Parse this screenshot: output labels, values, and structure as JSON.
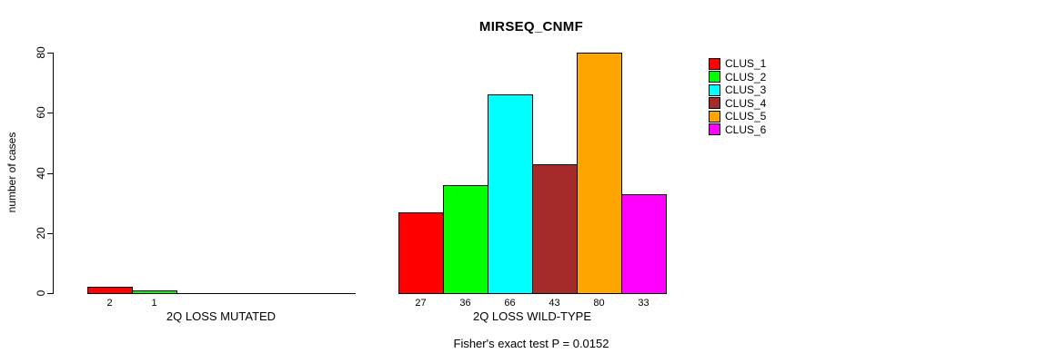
{
  "chart_data": {
    "type": "bar",
    "title": "MIRSEQ_CNMF",
    "ylabel": "number of cases",
    "xlabel": "",
    "ylim": [
      0,
      80
    ],
    "yticks": [
      0,
      20,
      40,
      60,
      80
    ],
    "grid": false,
    "legend_position": "right",
    "series": [
      {
        "name": "CLUS_1",
        "color": "#FF0000"
      },
      {
        "name": "CLUS_2",
        "color": "#00FF00"
      },
      {
        "name": "CLUS_3",
        "color": "#00FFFF"
      },
      {
        "name": "CLUS_4",
        "color": "#A52A2A"
      },
      {
        "name": "CLUS_5",
        "color": "#FFA500"
      },
      {
        "name": "CLUS_6",
        "color": "#FF00FF"
      }
    ],
    "groups": [
      {
        "label": "2Q LOSS MUTATED",
        "values": [
          2,
          1,
          0,
          0,
          0,
          0
        ]
      },
      {
        "label": "2Q LOSS WILD-TYPE",
        "values": [
          27,
          36,
          66,
          43,
          80,
          33
        ]
      }
    ],
    "annotation": "Fisher's exact test P = 0.0152"
  }
}
